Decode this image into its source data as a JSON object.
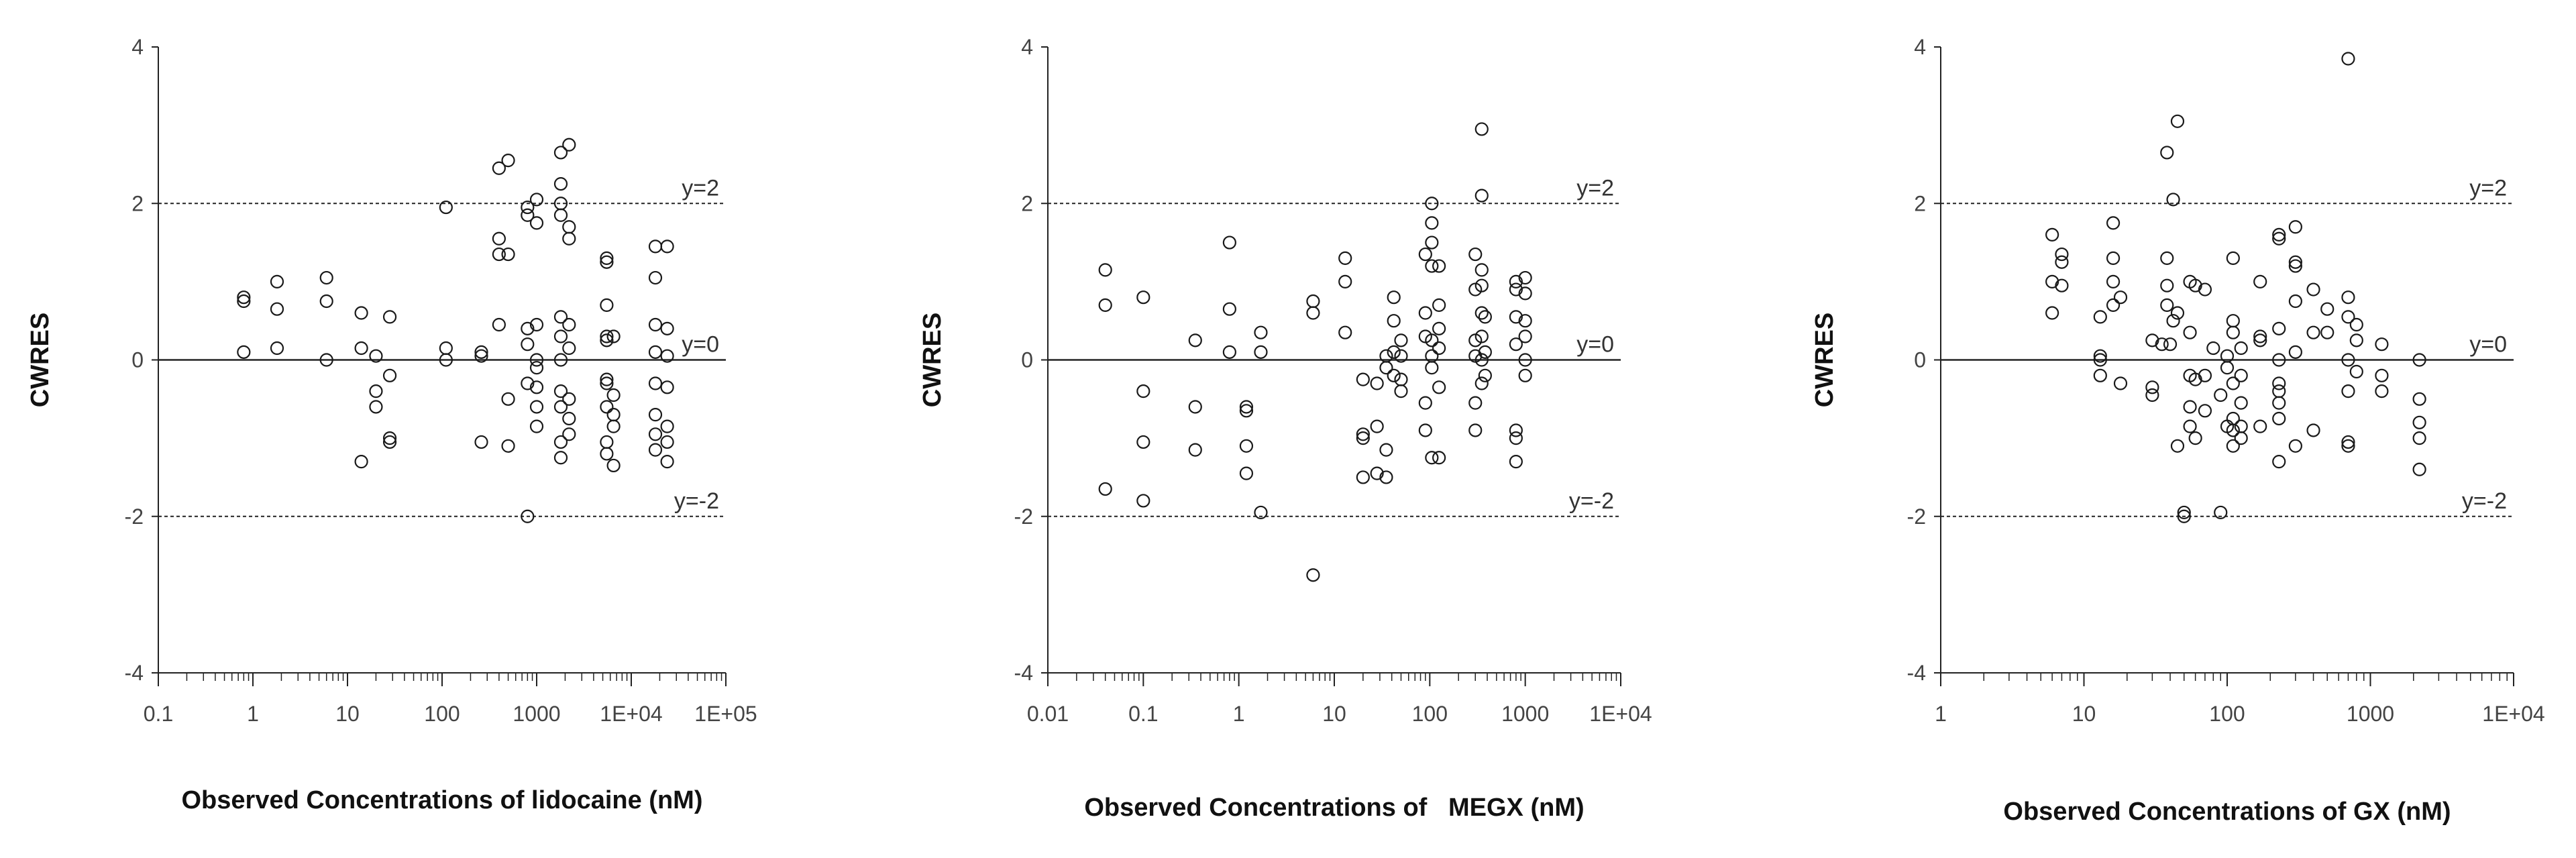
{
  "chart_data": [
    {
      "type": "scatter",
      "title": "",
      "xlabel": "Observed Concentrations of lidocaine (nM)",
      "ylabel": "CWRES",
      "xscale": "log",
      "xlim": [
        0.1,
        100000
      ],
      "ylim": [
        -4,
        4
      ],
      "xticks": [
        "0.1",
        "1",
        "10",
        "100",
        "1000",
        "1E+04",
        "1E+05"
      ],
      "yticks": [
        "4",
        "2",
        "0",
        "-2",
        "-4"
      ],
      "reference_lines": [
        {
          "y": 2,
          "style": "dashed",
          "label": "y=2"
        },
        {
          "y": 0,
          "style": "solid",
          "label": "y=0"
        },
        {
          "y": -2,
          "style": "dashed",
          "label": "y=-2"
        }
      ],
      "points": [
        [
          0.8,
          0.8
        ],
        [
          0.8,
          0.75
        ],
        [
          0.8,
          0.1
        ],
        [
          1.8,
          1.0
        ],
        [
          1.8,
          0.65
        ],
        [
          1.8,
          0.15
        ],
        [
          6,
          1.05
        ],
        [
          6,
          0.75
        ],
        [
          6,
          0.0
        ],
        [
          14,
          0.6
        ],
        [
          14,
          0.15
        ],
        [
          14,
          -1.3
        ],
        [
          20,
          0.05
        ],
        [
          20,
          -0.4
        ],
        [
          20,
          -0.6
        ],
        [
          28,
          0.55
        ],
        [
          28,
          -0.2
        ],
        [
          28,
          -1.0
        ],
        [
          28,
          -1.05
        ],
        [
          110,
          1.95
        ],
        [
          110,
          0.15
        ],
        [
          110,
          0.0
        ],
        [
          260,
          0.05
        ],
        [
          260,
          0.1
        ],
        [
          260,
          -1.05
        ],
        [
          400,
          2.45
        ],
        [
          400,
          1.55
        ],
        [
          400,
          1.35
        ],
        [
          400,
          0.45
        ],
        [
          500,
          2.55
        ],
        [
          500,
          1.35
        ],
        [
          500,
          -0.5
        ],
        [
          500,
          -1.1
        ],
        [
          800,
          1.95
        ],
        [
          800,
          1.85
        ],
        [
          800,
          0.4
        ],
        [
          800,
          0.2
        ],
        [
          800,
          -0.3
        ],
        [
          800,
          -2.0
        ],
        [
          1000,
          2.05
        ],
        [
          1000,
          1.75
        ],
        [
          1000,
          0.45
        ],
        [
          1000,
          0.0
        ],
        [
          1000,
          -0.1
        ],
        [
          1000,
          -0.35
        ],
        [
          1000,
          -0.6
        ],
        [
          1000,
          -0.85
        ],
        [
          1800,
          2.65
        ],
        [
          1800,
          2.25
        ],
        [
          1800,
          2.0
        ],
        [
          1800,
          1.85
        ],
        [
          1800,
          0.55
        ],
        [
          1800,
          0.3
        ],
        [
          1800,
          0.0
        ],
        [
          1800,
          -0.4
        ],
        [
          1800,
          -0.6
        ],
        [
          1800,
          -1.05
        ],
        [
          1800,
          -1.25
        ],
        [
          2200,
          2.75
        ],
        [
          2200,
          1.7
        ],
        [
          2200,
          1.55
        ],
        [
          2200,
          0.45
        ],
        [
          2200,
          0.15
        ],
        [
          2200,
          -0.5
        ],
        [
          2200,
          -0.75
        ],
        [
          2200,
          -0.95
        ],
        [
          5500,
          1.3
        ],
        [
          5500,
          1.25
        ],
        [
          5500,
          0.7
        ],
        [
          5500,
          0.3
        ],
        [
          5500,
          0.25
        ],
        [
          5500,
          -0.25
        ],
        [
          5500,
          -0.3
        ],
        [
          5500,
          -0.6
        ],
        [
          5500,
          -1.05
        ],
        [
          5500,
          -1.2
        ],
        [
          6500,
          0.3
        ],
        [
          6500,
          -0.45
        ],
        [
          6500,
          -0.7
        ],
        [
          6500,
          -0.85
        ],
        [
          6500,
          -1.35
        ],
        [
          18000,
          1.45
        ],
        [
          18000,
          1.05
        ],
        [
          18000,
          0.45
        ],
        [
          18000,
          0.1
        ],
        [
          18000,
          -0.3
        ],
        [
          18000,
          -0.7
        ],
        [
          18000,
          -0.95
        ],
        [
          18000,
          -1.15
        ],
        [
          24000,
          1.45
        ],
        [
          24000,
          0.4
        ],
        [
          24000,
          0.05
        ],
        [
          24000,
          -0.35
        ],
        [
          24000,
          -0.85
        ],
        [
          24000,
          -1.05
        ],
        [
          24000,
          -1.3
        ]
      ]
    },
    {
      "type": "scatter",
      "title": "",
      "xlabel": "Observed Concentrations of   MEGX (nM)",
      "ylabel": "CWRES",
      "xscale": "log",
      "xlim": [
        0.01,
        10000
      ],
      "ylim": [
        -4,
        4
      ],
      "xticks": [
        "0.01",
        "0.1",
        "1",
        "10",
        "100",
        "1000",
        "1E+04"
      ],
      "yticks": [
        "4",
        "2",
        "0",
        "-2",
        "-4"
      ],
      "reference_lines": [
        {
          "y": 2,
          "style": "dashed",
          "label": "y=2"
        },
        {
          "y": 0,
          "style": "solid",
          "label": "y=0"
        },
        {
          "y": -2,
          "style": "dashed",
          "label": "y=-2"
        }
      ],
      "points": [
        [
          0.04,
          1.15
        ],
        [
          0.04,
          0.7
        ],
        [
          0.04,
          -1.65
        ],
        [
          0.1,
          0.8
        ],
        [
          0.1,
          -0.4
        ],
        [
          0.1,
          -1.05
        ],
        [
          0.1,
          -1.8
        ],
        [
          0.35,
          0.25
        ],
        [
          0.35,
          -0.6
        ],
        [
          0.35,
          -1.15
        ],
        [
          0.8,
          1.5
        ],
        [
          0.8,
          0.65
        ],
        [
          0.8,
          0.1
        ],
        [
          1.2,
          -0.6
        ],
        [
          1.2,
          -0.65
        ],
        [
          1.2,
          -1.1
        ],
        [
          1.2,
          -1.45
        ],
        [
          1.7,
          0.35
        ],
        [
          1.7,
          0.1
        ],
        [
          1.7,
          -1.95
        ],
        [
          6,
          0.75
        ],
        [
          6,
          0.6
        ],
        [
          6,
          -2.75
        ],
        [
          13,
          1.3
        ],
        [
          13,
          1.0
        ],
        [
          13,
          0.35
        ],
        [
          20,
          -0.25
        ],
        [
          20,
          -0.95
        ],
        [
          20,
          -1.0
        ],
        [
          20,
          -1.5
        ],
        [
          28,
          -0.3
        ],
        [
          28,
          -0.85
        ],
        [
          28,
          -1.45
        ],
        [
          35,
          0.05
        ],
        [
          35,
          -0.1
        ],
        [
          35,
          -1.15
        ],
        [
          35,
          -1.5
        ],
        [
          42,
          0.8
        ],
        [
          42,
          0.5
        ],
        [
          42,
          0.1
        ],
        [
          42,
          -0.2
        ],
        [
          50,
          0.25
        ],
        [
          50,
          0.05
        ],
        [
          50,
          -0.25
        ],
        [
          50,
          -0.4
        ],
        [
          90,
          1.35
        ],
        [
          90,
          0.6
        ],
        [
          90,
          0.3
        ],
        [
          90,
          -0.55
        ],
        [
          90,
          -0.9
        ],
        [
          105,
          2.0
        ],
        [
          105,
          1.75
        ],
        [
          105,
          1.5
        ],
        [
          105,
          1.2
        ],
        [
          105,
          0.25
        ],
        [
          105,
          0.05
        ],
        [
          105,
          -0.1
        ],
        [
          105,
          -1.25
        ],
        [
          125,
          1.2
        ],
        [
          125,
          0.7
        ],
        [
          125,
          0.4
        ],
        [
          125,
          0.15
        ],
        [
          125,
          -0.35
        ],
        [
          125,
          -1.25
        ],
        [
          300,
          1.35
        ],
        [
          300,
          0.9
        ],
        [
          300,
          0.25
        ],
        [
          300,
          0.05
        ],
        [
          300,
          -0.55
        ],
        [
          300,
          -0.9
        ],
        [
          350,
          2.95
        ],
        [
          350,
          2.1
        ],
        [
          350,
          1.15
        ],
        [
          350,
          0.95
        ],
        [
          350,
          0.6
        ],
        [
          350,
          0.3
        ],
        [
          350,
          0.0
        ],
        [
          350,
          -0.3
        ],
        [
          380,
          0.55
        ],
        [
          380,
          0.1
        ],
        [
          380,
          -0.2
        ],
        [
          800,
          1.0
        ],
        [
          800,
          0.9
        ],
        [
          800,
          0.55
        ],
        [
          800,
          0.2
        ],
        [
          800,
          -0.9
        ],
        [
          800,
          -1.0
        ],
        [
          800,
          -1.3
        ],
        [
          1000,
          1.05
        ],
        [
          1000,
          0.85
        ],
        [
          1000,
          0.5
        ],
        [
          1000,
          0.3
        ],
        [
          1000,
          0.0
        ],
        [
          1000,
          -0.2
        ]
      ]
    },
    {
      "type": "scatter",
      "title": "",
      "xlabel": "Observed Concentrations of GX (nM)",
      "ylabel": "CWRES",
      "xscale": "log",
      "xlim": [
        1,
        10000
      ],
      "ylim": [
        -4,
        4
      ],
      "xticks": [
        "1",
        "10",
        "100",
        "1000",
        "1E+04"
      ],
      "yticks": [
        "4",
        "2",
        "0",
        "-2",
        "-4"
      ],
      "reference_lines": [
        {
          "y": 2,
          "style": "dashed",
          "label": "y=2"
        },
        {
          "y": 0,
          "style": "solid",
          "label": "y=0"
        },
        {
          "y": -2,
          "style": "dashed",
          "label": "y=-2"
        }
      ],
      "points": [
        [
          6,
          1.6
        ],
        [
          6,
          1.0
        ],
        [
          6,
          0.6
        ],
        [
          7,
          1.35
        ],
        [
          7,
          1.25
        ],
        [
          7,
          0.95
        ],
        [
          13,
          0.55
        ],
        [
          13,
          0.05
        ],
        [
          13,
          0.0
        ],
        [
          13,
          -0.2
        ],
        [
          16,
          1.75
        ],
        [
          16,
          1.3
        ],
        [
          16,
          1.0
        ],
        [
          16,
          0.7
        ],
        [
          18,
          0.8
        ],
        [
          18,
          -0.3
        ],
        [
          30,
          0.25
        ],
        [
          30,
          -0.35
        ],
        [
          30,
          -0.45
        ],
        [
          35,
          0.2
        ],
        [
          38,
          2.65
        ],
        [
          38,
          1.3
        ],
        [
          38,
          0.95
        ],
        [
          38,
          0.7
        ],
        [
          40,
          0.2
        ],
        [
          42,
          2.05
        ],
        [
          42,
          0.5
        ],
        [
          45,
          3.05
        ],
        [
          45,
          0.6
        ],
        [
          45,
          -1.1
        ],
        [
          50,
          -1.95
        ],
        [
          50,
          -2.0
        ],
        [
          55,
          1.0
        ],
        [
          55,
          0.35
        ],
        [
          55,
          -0.2
        ],
        [
          55,
          -0.6
        ],
        [
          55,
          -0.85
        ],
        [
          60,
          0.95
        ],
        [
          60,
          -0.25
        ],
        [
          60,
          -1.0
        ],
        [
          70,
          0.9
        ],
        [
          70,
          -0.2
        ],
        [
          70,
          -0.65
        ],
        [
          80,
          0.15
        ],
        [
          90,
          -0.45
        ],
        [
          90,
          -1.95
        ],
        [
          100,
          0.05
        ],
        [
          100,
          -0.1
        ],
        [
          100,
          -0.85
        ],
        [
          110,
          1.3
        ],
        [
          110,
          0.5
        ],
        [
          110,
          0.35
        ],
        [
          110,
          -0.3
        ],
        [
          110,
          -0.75
        ],
        [
          110,
          -0.9
        ],
        [
          110,
          -1.1
        ],
        [
          125,
          0.15
        ],
        [
          125,
          -0.2
        ],
        [
          125,
          -0.55
        ],
        [
          125,
          -0.85
        ],
        [
          125,
          -1.0
        ],
        [
          170,
          1.0
        ],
        [
          170,
          0.3
        ],
        [
          170,
          0.25
        ],
        [
          170,
          -0.85
        ],
        [
          230,
          1.6
        ],
        [
          230,
          1.55
        ],
        [
          230,
          0.4
        ],
        [
          230,
          0.0
        ],
        [
          230,
          -0.3
        ],
        [
          230,
          -0.4
        ],
        [
          230,
          -0.55
        ],
        [
          230,
          -0.75
        ],
        [
          230,
          -1.3
        ],
        [
          300,
          1.7
        ],
        [
          300,
          1.25
        ],
        [
          300,
          1.2
        ],
        [
          300,
          0.75
        ],
        [
          300,
          0.1
        ],
        [
          300,
          -1.1
        ],
        [
          400,
          0.9
        ],
        [
          400,
          0.35
        ],
        [
          400,
          -0.9
        ],
        [
          500,
          0.65
        ],
        [
          500,
          0.35
        ],
        [
          700,
          3.85
        ],
        [
          700,
          0.8
        ],
        [
          700,
          0.55
        ],
        [
          700,
          0.0
        ],
        [
          700,
          -0.4
        ],
        [
          700,
          -1.05
        ],
        [
          700,
          -1.1
        ],
        [
          800,
          0.45
        ],
        [
          800,
          0.25
        ],
        [
          800,
          -0.15
        ],
        [
          1200,
          0.2
        ],
        [
          1200,
          -0.2
        ],
        [
          1200,
          -0.4
        ],
        [
          2200,
          0.0
        ],
        [
          2200,
          -0.5
        ],
        [
          2200,
          -0.8
        ],
        [
          2200,
          -1.0
        ],
        [
          2200,
          -1.4
        ]
      ]
    }
  ]
}
